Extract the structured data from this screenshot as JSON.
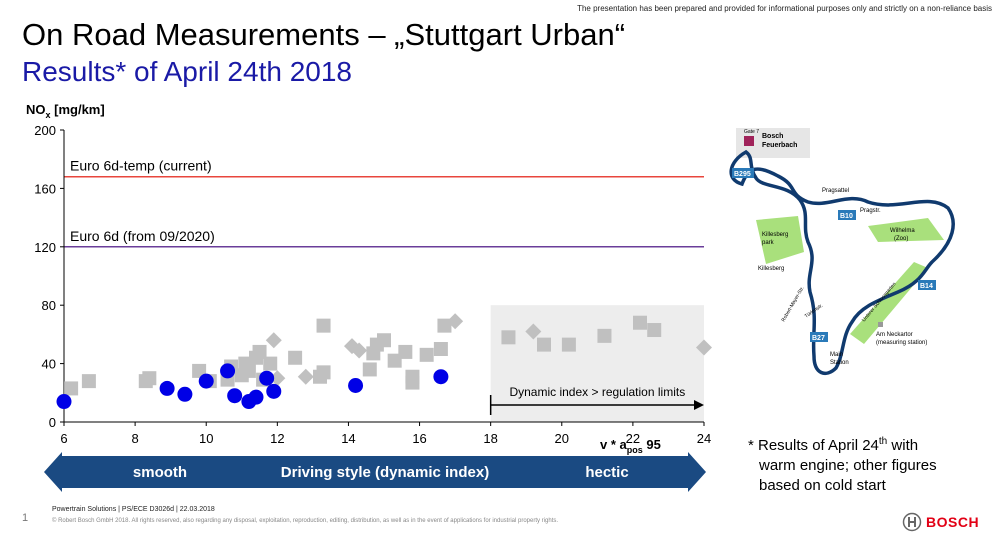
{
  "disclaimer": "The presentation has been prepared and provided for informational purposes only and strictly on a non-reliance basis",
  "title": "On Road Measurements – „Stuttgart Urban“",
  "subtitle": "Results* of April 24th 2018",
  "chart_data": {
    "type": "scatter",
    "ylabel_main": "NO",
    "ylabel_sub": "x",
    "ylabel_unit": " [mg/km]",
    "xlabel_main": "v * a",
    "xlabel_sub": "pos",
    "xlabel_suffix": " 95",
    "xlim": [
      6,
      24
    ],
    "ylim": [
      0,
      200
    ],
    "xticks": [
      6,
      8,
      10,
      12,
      14,
      16,
      18,
      20,
      22,
      24
    ],
    "yticks": [
      0,
      40,
      80,
      120,
      160,
      200
    ],
    "grid": false,
    "ref_lines": [
      {
        "label": "Euro 6d-temp (current)",
        "y": 168,
        "color": "#e8463c"
      },
      {
        "label": "Euro 6d (from 09/2020)",
        "y": 120,
        "color": "#6a3d9a"
      }
    ],
    "dynamic_region": {
      "x_start": 18,
      "x_end": 24,
      "y_top": 80,
      "label": "Dynamic index > regulation limits"
    },
    "series": [
      {
        "marker": "circle",
        "color": "#0000e6",
        "points": [
          [
            6.0,
            14
          ],
          [
            8.9,
            23
          ],
          [
            9.4,
            19
          ],
          [
            10.0,
            28
          ],
          [
            10.6,
            35
          ],
          [
            10.8,
            18
          ],
          [
            11.2,
            14
          ],
          [
            11.4,
            17
          ],
          [
            11.7,
            30
          ],
          [
            11.9,
            21
          ],
          [
            14.2,
            25
          ],
          [
            16.6,
            31
          ]
        ]
      },
      {
        "marker": "square",
        "color": "#c0c0c0",
        "points": [
          [
            6.2,
            23
          ],
          [
            6.7,
            28
          ],
          [
            8.3,
            28
          ],
          [
            8.4,
            30
          ],
          [
            9.8,
            35
          ],
          [
            10.1,
            28
          ],
          [
            10.6,
            29
          ],
          [
            10.7,
            38
          ],
          [
            11.0,
            32
          ],
          [
            11.1,
            40
          ],
          [
            11.2,
            35
          ],
          [
            11.4,
            44
          ],
          [
            11.5,
            48
          ],
          [
            11.6,
            29
          ],
          [
            11.8,
            40
          ],
          [
            12.5,
            44
          ],
          [
            13.2,
            31
          ],
          [
            13.3,
            34
          ],
          [
            13.3,
            66
          ],
          [
            14.6,
            36
          ],
          [
            14.7,
            47
          ],
          [
            14.8,
            53
          ],
          [
            15.0,
            56
          ],
          [
            15.3,
            42
          ],
          [
            15.6,
            48
          ],
          [
            15.8,
            31
          ],
          [
            15.8,
            27
          ],
          [
            16.2,
            46
          ],
          [
            16.6,
            50
          ],
          [
            16.7,
            66
          ],
          [
            18.5,
            58
          ],
          [
            19.5,
            53
          ],
          [
            20.2,
            53
          ],
          [
            21.2,
            59
          ],
          [
            22.2,
            68
          ],
          [
            22.6,
            63
          ]
        ]
      },
      {
        "marker": "diamond",
        "color": "#c0c0c0",
        "points": [
          [
            11.9,
            56
          ],
          [
            12.0,
            30
          ],
          [
            12.8,
            31
          ],
          [
            14.1,
            52
          ],
          [
            14.3,
            49
          ],
          [
            17.0,
            69
          ],
          [
            19.2,
            62
          ],
          [
            24.0,
            51
          ]
        ]
      }
    ]
  },
  "arrow_bar": {
    "left": "smooth",
    "center": "Driving style (dynamic index)",
    "right": "hectic",
    "color": "#1a4a82"
  },
  "note_lines": [
    "* Results of April 24",
    "th",
    " with",
    "warm engine; other figures",
    "based on cold start"
  ],
  "map": {
    "gate": "Gate 7",
    "bosch_label": [
      "Bosch",
      "Feuerbach"
    ],
    "roads": [
      "B295",
      "B10",
      "B14",
      "B27"
    ],
    "places": [
      "Pragsattel",
      "Pragstr.",
      "Wilhelma",
      "(Zoo)",
      "Killesberg",
      "park",
      "Killesberg",
      "Robert-Mayer-Str.",
      "Türlenstr.",
      "Unterer Schlossgarten",
      "Am Neckartor",
      "(measuring station)",
      "Main",
      "Station"
    ],
    "route_color": "#103a6e",
    "park_color": "#a9e07c",
    "road_badge_color": "#2a7ab9"
  },
  "footer": {
    "line1": "Powertrain Solutions | PS/ECE D3026d | 22.03.2018",
    "line2": "© Robert Bosch GmbH 2018. All rights reserved, also regarding any disposal, exploitation, reproduction, editing, distribution, as well as in the event of applications for industrial property rights.",
    "page": "1",
    "brand": "BOSCH"
  }
}
